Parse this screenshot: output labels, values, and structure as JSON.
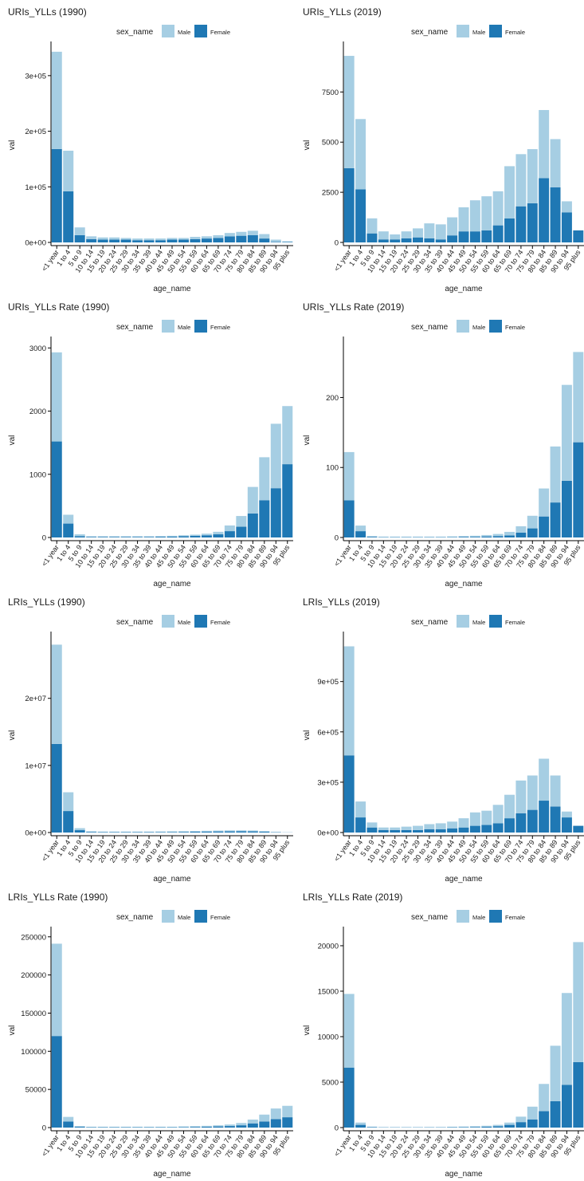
{
  "colors": {
    "male": "#a6cee3",
    "female": "#1f78b4",
    "axis": "#000000",
    "text": "#1a1a1a"
  },
  "chart_data": [
    {
      "type": "bar",
      "title": "URIs_YLLs (1990)",
      "legend_title": "sex_name",
      "legend_position": "top",
      "xlabel": "age_name",
      "ylabel": "val",
      "categories": [
        "<1 year",
        "1 to 4",
        "5 to 9",
        "10 to 14",
        "15 to 19",
        "20 to 24",
        "25 to 29",
        "30 to 34",
        "35 to 39",
        "40 to 44",
        "45 to 49",
        "50 to 54",
        "55 to 59",
        "60 to 64",
        "65 to 69",
        "70 to 74",
        "75 to 79",
        "80 to 84",
        "85 to 89",
        "90 to 94",
        "95 plus"
      ],
      "ylim": [
        0,
        350000
      ],
      "yticks": [
        0,
        100000,
        200000,
        300000
      ],
      "ytick_labels": [
        "0e+00",
        "1e+05",
        "2e+05",
        "3e+05"
      ],
      "series": [
        {
          "name": "Male",
          "values": [
            175000,
            73000,
            14000,
            5000,
            4000,
            4000,
            3000,
            3000,
            3000,
            3000,
            3000,
            3000,
            4000,
            4000,
            5000,
            6000,
            7000,
            8000,
            8000,
            4000,
            1000
          ]
        },
        {
          "name": "Female",
          "values": [
            168000,
            92000,
            13000,
            6000,
            5000,
            5000,
            5000,
            4000,
            4000,
            4000,
            5000,
            5000,
            6000,
            7000,
            8000,
            11000,
            12000,
            13000,
            7000,
            1000,
            1000
          ]
        }
      ]
    },
    {
      "type": "bar",
      "title": "URIs_YLLs (2019)",
      "legend_title": "sex_name",
      "legend_position": "top",
      "xlabel": "age_name",
      "ylabel": "val",
      "categories": [
        "<1 year",
        "1 to 4",
        "5 to 9",
        "10 to 14",
        "15 to 19",
        "20 to 24",
        "25 to 29",
        "30 to 34",
        "35 to 39",
        "40 to 44",
        "45 to 49",
        "50 to 54",
        "55 to 59",
        "60 to 64",
        "65 to 69",
        "70 to 74",
        "75 to 79",
        "80 to 84",
        "85 to 89",
        "90 to 94",
        "95 plus"
      ],
      "ylim": [
        0,
        9700
      ],
      "yticks": [
        0,
        2500,
        5000,
        7500
      ],
      "ytick_labels": [
        "0",
        "2500",
        "5000",
        "7500"
      ],
      "series": [
        {
          "name": "Male",
          "values": [
            5600,
            3500,
            750,
            400,
            250,
            350,
            450,
            750,
            750,
            900,
            1200,
            1550,
            1700,
            1700,
            2600,
            2600,
            2700,
            3400,
            2400,
            550,
            0
          ]
        },
        {
          "name": "Female",
          "values": [
            3700,
            2650,
            450,
            150,
            150,
            200,
            250,
            200,
            150,
            350,
            550,
            550,
            600,
            850,
            1200,
            1800,
            1950,
            3200,
            2750,
            1500,
            600
          ]
        }
      ]
    },
    {
      "type": "bar",
      "title": "URIs_YLLs Rate (1990)",
      "legend_title": "sex_name",
      "legend_position": "top",
      "xlabel": "age_name",
      "ylabel": "val",
      "categories": [
        "<1 year",
        "1 to 4",
        "5 to 9",
        "10 to 14",
        "15 to 19",
        "20 to 24",
        "25 to 29",
        "30 to 34",
        "35 to 39",
        "40 to 44",
        "45 to 49",
        "50 to 54",
        "55 to 59",
        "60 to 64",
        "65 to 69",
        "70 to 74",
        "75 to 79",
        "80 to 84",
        "85 to 89",
        "90 to 94",
        "95 plus"
      ],
      "ylim": [
        0,
        3080
      ],
      "yticks": [
        0,
        1000,
        2000,
        3000
      ],
      "ytick_labels": [
        "0",
        "1000",
        "2000",
        "3000"
      ],
      "series": [
        {
          "name": "Male",
          "values": [
            1410,
            140,
            30,
            10,
            10,
            10,
            10,
            10,
            10,
            10,
            12,
            15,
            20,
            25,
            40,
            90,
            170,
            420,
            680,
            1020,
            920
          ]
        },
        {
          "name": "Female",
          "values": [
            1520,
            220,
            20,
            10,
            10,
            10,
            10,
            10,
            10,
            12,
            15,
            20,
            25,
            35,
            50,
            100,
            170,
            380,
            590,
            780,
            1160
          ]
        }
      ]
    },
    {
      "type": "bar",
      "title": "URIs_YLLs Rate (2019)",
      "legend_title": "sex_name",
      "legend_position": "top",
      "xlabel": "age_name",
      "ylabel": "val",
      "categories": [
        "<1 year",
        "1 to 4",
        "5 to 9",
        "10 to 14",
        "15 to 19",
        "20 to 24",
        "25 to 29",
        "30 to 34",
        "35 to 39",
        "40 to 44",
        "45 to 49",
        "50 to 54",
        "55 to 59",
        "60 to 64",
        "65 to 69",
        "70 to 74",
        "75 to 79",
        "80 to 84",
        "85 to 89",
        "90 to 94",
        "95 plus"
      ],
      "ylim": [
        0,
        278
      ],
      "yticks": [
        0,
        100,
        200
      ],
      "ytick_labels": [
        "0",
        "100",
        "200"
      ],
      "series": [
        {
          "name": "Male",
          "values": [
            69,
            8,
            1,
            0.5,
            0.5,
            0.5,
            0.5,
            0.5,
            0.5,
            1,
            1,
            1.5,
            2,
            3,
            5,
            9,
            18,
            40,
            80,
            137,
            129
          ]
        },
        {
          "name": "Female",
          "values": [
            53,
            9,
            1,
            0.5,
            0.5,
            0.5,
            0.5,
            0.5,
            0.5,
            0.5,
            1,
            1,
            1.5,
            2,
            3,
            7,
            13,
            30,
            50,
            81,
            136
          ]
        }
      ]
    },
    {
      "type": "bar",
      "title": "LRIs_YLLs (1990)",
      "legend_title": "sex_name",
      "legend_position": "top",
      "xlabel": "age_name",
      "ylabel": "val",
      "categories": [
        "<1 year",
        "1 to 4",
        "5 to 9",
        "10 to 14",
        "15 to 19",
        "20 to 24",
        "25 to 29",
        "30 to 34",
        "35 to 39",
        "40 to 44",
        "45 to 49",
        "50 to 54",
        "55 to 59",
        "60 to 64",
        "65 to 69",
        "70 to 74",
        "75 to 79",
        "80 to 84",
        "85 to 89",
        "90 to 94",
        "95 plus"
      ],
      "ylim": [
        0,
        29000000
      ],
      "yticks": [
        0,
        10000000,
        20000000
      ],
      "ytick_labels": [
        "0e+00",
        "1e+07",
        "2e+07"
      ],
      "series": [
        {
          "name": "Male",
          "values": [
            14800000,
            2800000,
            300000,
            80000,
            60000,
            60000,
            60000,
            60000,
            60000,
            70000,
            80000,
            90000,
            100000,
            120000,
            130000,
            150000,
            140000,
            130000,
            90000,
            40000,
            10000
          ]
        },
        {
          "name": "Female",
          "values": [
            13200000,
            3200000,
            350000,
            100000,
            70000,
            70000,
            70000,
            70000,
            70000,
            80000,
            90000,
            100000,
            120000,
            140000,
            160000,
            170000,
            180000,
            170000,
            120000,
            50000,
            20000
          ]
        }
      ]
    },
    {
      "type": "bar",
      "title": "LRIs_YLLs (2019)",
      "legend_title": "sex_name",
      "legend_position": "top",
      "xlabel": "age_name",
      "ylabel": "val",
      "categories": [
        "<1 year",
        "1 to 4",
        "5 to 9",
        "10 to 14",
        "15 to 19",
        "20 to 24",
        "25 to 29",
        "30 to 34",
        "35 to 39",
        "40 to 44",
        "45 to 49",
        "50 to 54",
        "55 to 59",
        "60 to 64",
        "65 to 69",
        "70 to 74",
        "75 to 79",
        "80 to 84",
        "85 to 89",
        "90 to 94",
        "95 plus"
      ],
      "ylim": [
        0,
        1160000
      ],
      "yticks": [
        0,
        300000,
        600000,
        900000
      ],
      "ytick_labels": [
        "0e+00",
        "3e+05",
        "6e+05",
        "9e+05"
      ],
      "series": [
        {
          "name": "Male",
          "values": [
            650000,
            95000,
            30000,
            15000,
            15000,
            20000,
            25000,
            30000,
            35000,
            40000,
            55000,
            80000,
            85000,
            110000,
            140000,
            195000,
            205000,
            250000,
            185000,
            35000,
            0
          ]
        },
        {
          "name": "Female",
          "values": [
            460000,
            90000,
            30000,
            15000,
            15000,
            15000,
            15000,
            20000,
            20000,
            25000,
            30000,
            40000,
            45000,
            55000,
            85000,
            115000,
            135000,
            190000,
            155000,
            90000,
            40000
          ]
        }
      ]
    },
    {
      "type": "bar",
      "title": "LRIs_YLLs Rate (1990)",
      "legend_title": "sex_name",
      "legend_position": "top",
      "xlabel": "age_name",
      "ylabel": "val",
      "categories": [
        "<1 year",
        "1 to 4",
        "5 to 9",
        "10 to 14",
        "15 to 19",
        "20 to 24",
        "25 to 29",
        "30 to 34",
        "35 to 39",
        "40 to 44",
        "45 to 49",
        "50 to 54",
        "55 to 59",
        "60 to 64",
        "65 to 69",
        "70 to 74",
        "75 to 79",
        "80 to 84",
        "85 to 89",
        "90 to 94",
        "95 plus"
      ],
      "ylim": [
        0,
        255000
      ],
      "yticks": [
        0,
        50000,
        100000,
        150000,
        200000,
        250000
      ],
      "ytick_labels": [
        "0",
        "50000",
        "100000",
        "150000",
        "200000",
        "250000"
      ],
      "series": [
        {
          "name": "Male",
          "values": [
            121000,
            6000,
            1000,
            500,
            500,
            500,
            500,
            500,
            500,
            500,
            500,
            800,
            1000,
            1200,
            1500,
            2000,
            3000,
            5000,
            9000,
            14000,
            15000
          ]
        },
        {
          "name": "Female",
          "values": [
            120000,
            8000,
            1000,
            500,
            500,
            500,
            500,
            500,
            500,
            500,
            500,
            700,
            900,
            1100,
            1500,
            2000,
            3000,
            5500,
            8000,
            11000,
            13500
          ]
        }
      ]
    },
    {
      "type": "bar",
      "title": "LRIs_YLLs Rate (2019)",
      "legend_title": "sex_name",
      "legend_position": "top",
      "xlabel": "age_name",
      "ylabel": "val",
      "categories": [
        "<1 year",
        "1 to 4",
        "5 to 9",
        "10 to 14",
        "15 to 19",
        "20 to 24",
        "25 to 29",
        "30 to 34",
        "35 to 39",
        "40 to 44",
        "45 to 49",
        "50 to 54",
        "55 to 59",
        "60 to 64",
        "65 to 69",
        "70 to 74",
        "75 to 79",
        "80 to 84",
        "85 to 89",
        "90 to 94",
        "95 plus"
      ],
      "ylim": [
        0,
        21400
      ],
      "yticks": [
        0,
        5000,
        10000,
        15000,
        20000
      ],
      "ytick_labels": [
        "0",
        "5000",
        "10000",
        "15000",
        "20000"
      ],
      "series": [
        {
          "name": "Male",
          "values": [
            8100,
            250,
            50,
            30,
            30,
            30,
            30,
            40,
            40,
            50,
            60,
            80,
            100,
            150,
            250,
            600,
            1400,
            3000,
            6100,
            10100,
            13200
          ]
        },
        {
          "name": "Female",
          "values": [
            6600,
            300,
            50,
            30,
            30,
            30,
            30,
            30,
            30,
            40,
            50,
            70,
            100,
            150,
            300,
            600,
            900,
            1800,
            2900,
            4700,
            7200
          ]
        }
      ]
    }
  ]
}
